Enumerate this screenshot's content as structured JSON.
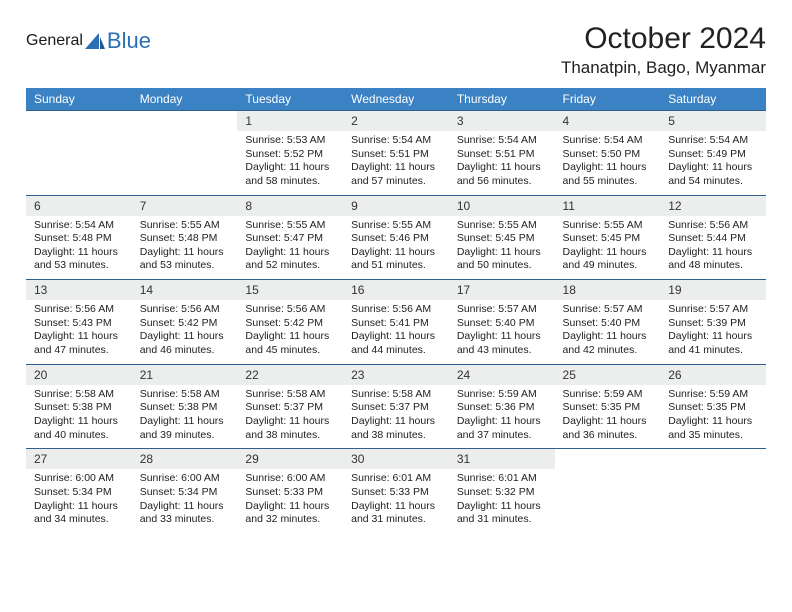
{
  "logo": {
    "general": "General",
    "blue": "Blue"
  },
  "title": "October 2024",
  "location": "Thanatpin, Bago, Myanmar",
  "colors": {
    "header_bg": "#3b82c4",
    "header_text": "#ffffff",
    "cell_border": "#2f5f8a",
    "daynum_bg": "#eceded",
    "logo_gray": "#5b5b5b",
    "logo_blue": "#2b6fb5"
  },
  "weekdays": [
    "Sunday",
    "Monday",
    "Tuesday",
    "Wednesday",
    "Thursday",
    "Friday",
    "Saturday"
  ],
  "weeks": [
    [
      {
        "empty": true
      },
      {
        "empty": true
      },
      {
        "day": "1",
        "l1": "Sunrise: 5:53 AM",
        "l2": "Sunset: 5:52 PM",
        "l3": "Daylight: 11 hours",
        "l4": "and 58 minutes."
      },
      {
        "day": "2",
        "l1": "Sunrise: 5:54 AM",
        "l2": "Sunset: 5:51 PM",
        "l3": "Daylight: 11 hours",
        "l4": "and 57 minutes."
      },
      {
        "day": "3",
        "l1": "Sunrise: 5:54 AM",
        "l2": "Sunset: 5:51 PM",
        "l3": "Daylight: 11 hours",
        "l4": "and 56 minutes."
      },
      {
        "day": "4",
        "l1": "Sunrise: 5:54 AM",
        "l2": "Sunset: 5:50 PM",
        "l3": "Daylight: 11 hours",
        "l4": "and 55 minutes."
      },
      {
        "day": "5",
        "l1": "Sunrise: 5:54 AM",
        "l2": "Sunset: 5:49 PM",
        "l3": "Daylight: 11 hours",
        "l4": "and 54 minutes."
      }
    ],
    [
      {
        "day": "6",
        "l1": "Sunrise: 5:54 AM",
        "l2": "Sunset: 5:48 PM",
        "l3": "Daylight: 11 hours",
        "l4": "and 53 minutes."
      },
      {
        "day": "7",
        "l1": "Sunrise: 5:55 AM",
        "l2": "Sunset: 5:48 PM",
        "l3": "Daylight: 11 hours",
        "l4": "and 53 minutes."
      },
      {
        "day": "8",
        "l1": "Sunrise: 5:55 AM",
        "l2": "Sunset: 5:47 PM",
        "l3": "Daylight: 11 hours",
        "l4": "and 52 minutes."
      },
      {
        "day": "9",
        "l1": "Sunrise: 5:55 AM",
        "l2": "Sunset: 5:46 PM",
        "l3": "Daylight: 11 hours",
        "l4": "and 51 minutes."
      },
      {
        "day": "10",
        "l1": "Sunrise: 5:55 AM",
        "l2": "Sunset: 5:45 PM",
        "l3": "Daylight: 11 hours",
        "l4": "and 50 minutes."
      },
      {
        "day": "11",
        "l1": "Sunrise: 5:55 AM",
        "l2": "Sunset: 5:45 PM",
        "l3": "Daylight: 11 hours",
        "l4": "and 49 minutes."
      },
      {
        "day": "12",
        "l1": "Sunrise: 5:56 AM",
        "l2": "Sunset: 5:44 PM",
        "l3": "Daylight: 11 hours",
        "l4": "and 48 minutes."
      }
    ],
    [
      {
        "day": "13",
        "l1": "Sunrise: 5:56 AM",
        "l2": "Sunset: 5:43 PM",
        "l3": "Daylight: 11 hours",
        "l4": "and 47 minutes."
      },
      {
        "day": "14",
        "l1": "Sunrise: 5:56 AM",
        "l2": "Sunset: 5:42 PM",
        "l3": "Daylight: 11 hours",
        "l4": "and 46 minutes."
      },
      {
        "day": "15",
        "l1": "Sunrise: 5:56 AM",
        "l2": "Sunset: 5:42 PM",
        "l3": "Daylight: 11 hours",
        "l4": "and 45 minutes."
      },
      {
        "day": "16",
        "l1": "Sunrise: 5:56 AM",
        "l2": "Sunset: 5:41 PM",
        "l3": "Daylight: 11 hours",
        "l4": "and 44 minutes."
      },
      {
        "day": "17",
        "l1": "Sunrise: 5:57 AM",
        "l2": "Sunset: 5:40 PM",
        "l3": "Daylight: 11 hours",
        "l4": "and 43 minutes."
      },
      {
        "day": "18",
        "l1": "Sunrise: 5:57 AM",
        "l2": "Sunset: 5:40 PM",
        "l3": "Daylight: 11 hours",
        "l4": "and 42 minutes."
      },
      {
        "day": "19",
        "l1": "Sunrise: 5:57 AM",
        "l2": "Sunset: 5:39 PM",
        "l3": "Daylight: 11 hours",
        "l4": "and 41 minutes."
      }
    ],
    [
      {
        "day": "20",
        "l1": "Sunrise: 5:58 AM",
        "l2": "Sunset: 5:38 PM",
        "l3": "Daylight: 11 hours",
        "l4": "and 40 minutes."
      },
      {
        "day": "21",
        "l1": "Sunrise: 5:58 AM",
        "l2": "Sunset: 5:38 PM",
        "l3": "Daylight: 11 hours",
        "l4": "and 39 minutes."
      },
      {
        "day": "22",
        "l1": "Sunrise: 5:58 AM",
        "l2": "Sunset: 5:37 PM",
        "l3": "Daylight: 11 hours",
        "l4": "and 38 minutes."
      },
      {
        "day": "23",
        "l1": "Sunrise: 5:58 AM",
        "l2": "Sunset: 5:37 PM",
        "l3": "Daylight: 11 hours",
        "l4": "and 38 minutes."
      },
      {
        "day": "24",
        "l1": "Sunrise: 5:59 AM",
        "l2": "Sunset: 5:36 PM",
        "l3": "Daylight: 11 hours",
        "l4": "and 37 minutes."
      },
      {
        "day": "25",
        "l1": "Sunrise: 5:59 AM",
        "l2": "Sunset: 5:35 PM",
        "l3": "Daylight: 11 hours",
        "l4": "and 36 minutes."
      },
      {
        "day": "26",
        "l1": "Sunrise: 5:59 AM",
        "l2": "Sunset: 5:35 PM",
        "l3": "Daylight: 11 hours",
        "l4": "and 35 minutes."
      }
    ],
    [
      {
        "day": "27",
        "l1": "Sunrise: 6:00 AM",
        "l2": "Sunset: 5:34 PM",
        "l3": "Daylight: 11 hours",
        "l4": "and 34 minutes."
      },
      {
        "day": "28",
        "l1": "Sunrise: 6:00 AM",
        "l2": "Sunset: 5:34 PM",
        "l3": "Daylight: 11 hours",
        "l4": "and 33 minutes."
      },
      {
        "day": "29",
        "l1": "Sunrise: 6:00 AM",
        "l2": "Sunset: 5:33 PM",
        "l3": "Daylight: 11 hours",
        "l4": "and 32 minutes."
      },
      {
        "day": "30",
        "l1": "Sunrise: 6:01 AM",
        "l2": "Sunset: 5:33 PM",
        "l3": "Daylight: 11 hours",
        "l4": "and 31 minutes."
      },
      {
        "day": "31",
        "l1": "Sunrise: 6:01 AM",
        "l2": "Sunset: 5:32 PM",
        "l3": "Daylight: 11 hours",
        "l4": "and 31 minutes."
      },
      {
        "empty": true
      },
      {
        "empty": true
      }
    ]
  ]
}
